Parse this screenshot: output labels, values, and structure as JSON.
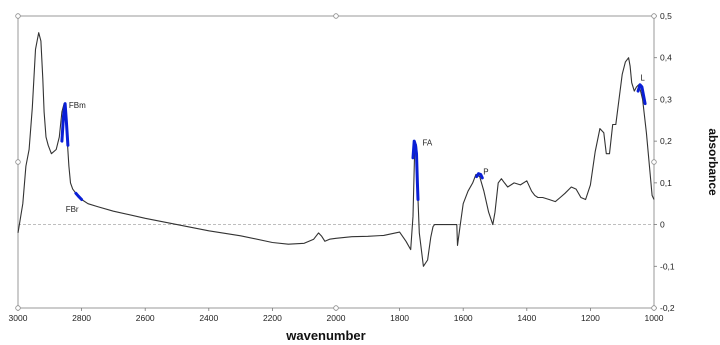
{
  "chart_data": {
    "type": "line",
    "title": "",
    "xlabel": "wavenumber",
    "ylabel": "absorbance",
    "xlim": [
      3000,
      1000
    ],
    "ylim": [
      -0.2,
      0.5
    ],
    "x_reversed": true,
    "x_ticks": [
      "3000",
      "2800",
      "2600",
      "2400",
      "2200",
      "2000",
      "1800",
      "1600",
      "1400",
      "1200",
      "1000"
    ],
    "y_ticks": [
      "-0,2",
      "-0,1",
      "0",
      "0,1",
      "0,2",
      "0,3",
      "0,4",
      "0,5"
    ],
    "zero_line": "dashed",
    "grid": false,
    "legend": "none",
    "line_color": "#333333",
    "highlight_color": "#0a1fd6",
    "series": [
      {
        "x": [
          3000,
          2985,
          2975,
          2965,
          2955,
          2945,
          2935,
          2928,
          2922,
          2918,
          2912,
          2905,
          2895,
          2880,
          2870,
          2862,
          2855,
          2850,
          2845,
          2840,
          2835,
          2828,
          2818,
          2800,
          2780,
          2750,
          2700,
          2600,
          2500,
          2400,
          2300,
          2200,
          2150,
          2100,
          2070,
          2055,
          2045,
          2035,
          2020,
          2000,
          1950,
          1900,
          1850,
          1800,
          1780,
          1765,
          1758,
          1752,
          1747,
          1745,
          1742,
          1738,
          1725,
          1712,
          1702,
          1695,
          1690,
          1685,
          1670,
          1640,
          1620,
          1618,
          1610,
          1600,
          1585,
          1570,
          1560,
          1548,
          1535,
          1520,
          1507,
          1500,
          1490,
          1480,
          1470,
          1460,
          1440,
          1420,
          1400,
          1385,
          1375,
          1365,
          1350,
          1330,
          1310,
          1295,
          1280,
          1260,
          1245,
          1230,
          1215,
          1200,
          1185,
          1170,
          1158,
          1150,
          1140,
          1130,
          1120,
          1110,
          1100,
          1090,
          1080,
          1075,
          1070,
          1062,
          1055,
          1048,
          1042,
          1036,
          1030,
          1024,
          1018,
          1012,
          1006,
          1000
        ],
        "y": [
          -0.02,
          0.05,
          0.14,
          0.18,
          0.28,
          0.42,
          0.46,
          0.44,
          0.35,
          0.27,
          0.21,
          0.19,
          0.17,
          0.18,
          0.21,
          0.27,
          0.29,
          0.26,
          0.2,
          0.14,
          0.1,
          0.085,
          0.075,
          0.06,
          0.05,
          0.043,
          0.032,
          0.015,
          0.0,
          -0.015,
          -0.027,
          -0.043,
          -0.047,
          -0.045,
          -0.035,
          -0.02,
          -0.028,
          -0.04,
          -0.035,
          -0.033,
          -0.029,
          -0.028,
          -0.026,
          -0.018,
          -0.04,
          -0.06,
          0.02,
          0.2,
          0.19,
          0.16,
          0.06,
          -0.02,
          -0.1,
          -0.085,
          -0.03,
          -0.005,
          0.0,
          0.0,
          0.0,
          0.0,
          0.0,
          -0.05,
          -0.005,
          0.05,
          0.08,
          0.1,
          0.12,
          0.115,
          0.08,
          0.03,
          0.0,
          0.03,
          0.1,
          0.11,
          0.1,
          0.09,
          0.1,
          0.095,
          0.105,
          0.08,
          0.07,
          0.065,
          0.065,
          0.06,
          0.055,
          0.065,
          0.075,
          0.09,
          0.085,
          0.065,
          0.06,
          0.095,
          0.175,
          0.23,
          0.22,
          0.17,
          0.17,
          0.24,
          0.24,
          0.3,
          0.36,
          0.39,
          0.4,
          0.38,
          0.34,
          0.32,
          0.33,
          0.335,
          0.32,
          0.3,
          0.26,
          0.22,
          0.17,
          0.12,
          0.07,
          0.06
        ]
      }
    ],
    "annotations": [
      {
        "label": "FBm",
        "x": 2840,
        "y": 0.28
      },
      {
        "label": "FBr",
        "x": 2850,
        "y": 0.03
      },
      {
        "label": "FA",
        "x": 1728,
        "y": 0.19
      },
      {
        "label": "P",
        "x": 1537,
        "y": 0.12
      },
      {
        "label": "L",
        "x": 1043,
        "y": 0.345
      }
    ],
    "highlights": [
      {
        "name": "FBm",
        "x": [
          2862,
          2857,
          2852,
          2848,
          2843
        ],
        "y": [
          0.2,
          0.26,
          0.29,
          0.25,
          0.19
        ]
      },
      {
        "name": "FBr",
        "x": [
          2818,
          2810,
          2800
        ],
        "y": [
          0.075,
          0.068,
          0.06
        ]
      },
      {
        "name": "FA",
        "x": [
          1758,
          1754,
          1750,
          1747,
          1744,
          1742
        ],
        "y": [
          0.16,
          0.2,
          0.19,
          0.17,
          0.1,
          0.06
        ]
      },
      {
        "name": "P",
        "x": [
          1558,
          1552,
          1545,
          1540
        ],
        "y": [
          0.115,
          0.122,
          0.12,
          0.112
        ]
      },
      {
        "name": "L",
        "x": [
          1050,
          1044,
          1038,
          1033,
          1028
        ],
        "y": [
          0.32,
          0.335,
          0.33,
          0.31,
          0.29
        ]
      }
    ]
  }
}
